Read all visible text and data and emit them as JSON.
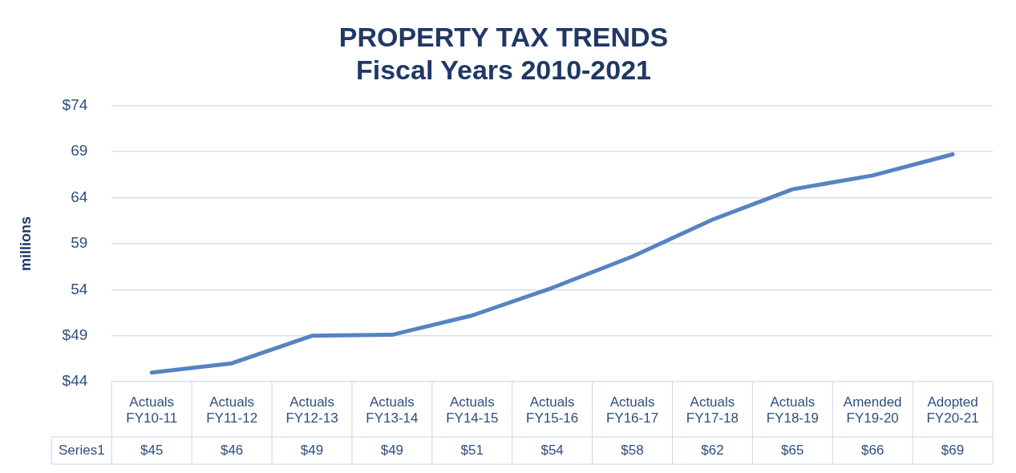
{
  "chart_data": {
    "type": "line",
    "title": "PROPERTY TAX TRENDS\nFiscal Years 2010-2021",
    "ylabel": "millions",
    "categories": [
      "Actuals FY10-11",
      "Actuals FY11-12",
      "Actuals FY12-13",
      "Actuals FY13-14",
      "Actuals FY14-15",
      "Actuals FY15-16",
      "Actuals FY16-17",
      "Actuals FY17-18",
      "Actuals FY18-19",
      "Amended FY19-20",
      "Adopted FY20-21"
    ],
    "series": [
      {
        "name": "Series1",
        "color": "#5683c2",
        "values": [
          45.0,
          46.0,
          49.0,
          49.1,
          51.2,
          54.2,
          57.6,
          61.6,
          64.9,
          66.4,
          68.7
        ],
        "value_labels": [
          "$45",
          "$46",
          "$49",
          "$49",
          "$51",
          "$54",
          "$58",
          "$62",
          "$65",
          "$66",
          "$69"
        ]
      }
    ],
    "ylim": [
      44,
      74
    ],
    "yticks": [
      {
        "value": 44,
        "label": "$44"
      },
      {
        "value": 49,
        "label": "$49"
      },
      54,
      59,
      64,
      69,
      {
        "value": 74,
        "label": "$74"
      }
    ],
    "grid": "y",
    "legend": false,
    "marker": "none",
    "line_style": "solid"
  }
}
